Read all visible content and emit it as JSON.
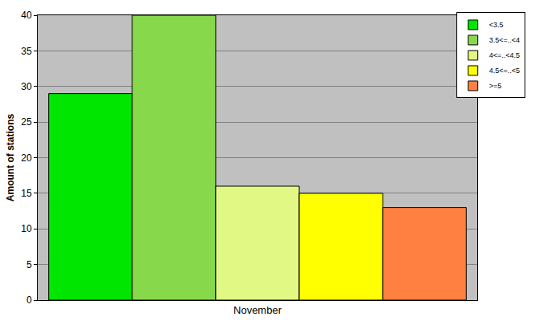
{
  "chart_data": {
    "type": "bar",
    "categories": [
      "November"
    ],
    "y_label": "Amount of stations",
    "series": [
      {
        "name": "<3.5",
        "color": "#00e600",
        "values": [
          29
        ]
      },
      {
        "name": "3.5<=..<4",
        "color": "#88d84c",
        "values": [
          40
        ]
      },
      {
        "name": "4<=..<4.5",
        "color": "#e1f984",
        "values": [
          16
        ]
      },
      {
        "name": "4.5<=..<5",
        "color": "#ffff00",
        "values": [
          15
        ]
      },
      {
        "name": ">=5",
        "color": "#ff8040",
        "values": [
          13
        ]
      }
    ],
    "ylim": [
      0,
      40
    ],
    "yticks": [
      0,
      5,
      10,
      15,
      20,
      25,
      30,
      35,
      40
    ],
    "grid": true,
    "legend": "top-right"
  }
}
